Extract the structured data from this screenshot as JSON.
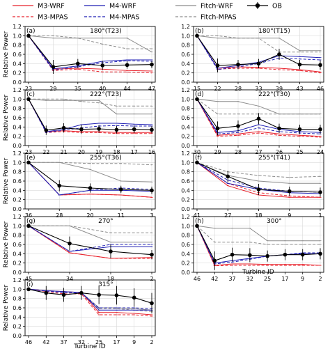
{
  "legend": {
    "items": [
      {
        "label": "M3-WRF",
        "series": "m3_wrf"
      },
      {
        "label": "M4-WRF",
        "series": "m4_wrf"
      },
      {
        "label": "Fitch-WRF",
        "series": "fitch_wrf"
      },
      {
        "label": "OB",
        "series": "ob"
      },
      {
        "label": "M3-MPAS",
        "series": "m3_mpas"
      },
      {
        "label": "M4-MPAS",
        "series": "m4_mpas"
      },
      {
        "label": "Fitch-MPAS",
        "series": "fitch_mpas"
      }
    ]
  },
  "series_styles": {
    "m3_wrf": {
      "color": "#e8202a",
      "dash": "solid"
    },
    "m3_mpas": {
      "color": "#e8202a",
      "dash": "dashed"
    },
    "m4_wrf": {
      "color": "#1f1fb4",
      "dash": "solid"
    },
    "m4_mpas": {
      "color": "#1f1fb4",
      "dash": "dashed"
    },
    "fitch_wrf": {
      "color": "#8c8c8c",
      "dash": "solid"
    },
    "fitch_mpas": {
      "color": "#8c8c8c",
      "dash": "dashed"
    },
    "ob": {
      "color": "#000000",
      "dash": "solid"
    }
  },
  "ylabel": "Relative Power",
  "xlabel": "Turbine ID",
  "yticks": [
    "0.0",
    "0.2",
    "0.4",
    "0.6",
    "0.8",
    "1.0",
    "1.2"
  ],
  "chart_data": [
    {
      "type": "line",
      "panel": "(a)",
      "title": "180°(T23)",
      "categories": [
        "23",
        "29",
        "35",
        "40",
        "44",
        "47"
      ],
      "ylim": [
        0,
        1.2
      ],
      "grid": true,
      "series": [
        {
          "name": "M3-WRF",
          "key": "m3_wrf",
          "values": [
            1.0,
            0.28,
            0.3,
            0.28,
            0.25,
            0.24
          ]
        },
        {
          "name": "M3-MPAS",
          "key": "m3_mpas",
          "values": [
            1.0,
            0.25,
            0.28,
            0.22,
            0.22,
            0.2
          ]
        },
        {
          "name": "M4-WRF",
          "key": "m4_wrf",
          "values": [
            1.0,
            0.29,
            0.35,
            0.45,
            0.48,
            0.48
          ]
        },
        {
          "name": "M4-MPAS",
          "key": "m4_mpas",
          "values": [
            1.0,
            0.26,
            0.33,
            0.42,
            0.46,
            0.45
          ]
        },
        {
          "name": "Fitch-WRF",
          "key": "fitch_wrf",
          "values": [
            1.0,
            0.95,
            0.95,
            0.95,
            0.95,
            0.65
          ]
        },
        {
          "name": "Fitch-MPAS",
          "key": "fitch_mpas",
          "values": [
            1.0,
            1.0,
            0.95,
            0.82,
            0.72,
            0.72
          ]
        },
        {
          "name": "OB",
          "key": "ob",
          "values": [
            1.0,
            0.33,
            0.4,
            0.36,
            0.37,
            0.38
          ],
          "err": [
            0,
            0.15,
            0.1,
            0.1,
            0.08,
            0.08
          ]
        }
      ]
    },
    {
      "type": "line",
      "panel": "(b)",
      "title": "180°(T15)",
      "categories": [
        "15",
        "22",
        "28",
        "33",
        "39",
        "43",
        "46"
      ],
      "ylim": [
        0,
        1.2
      ],
      "grid": true,
      "series": [
        {
          "name": "M3-WRF",
          "key": "m3_wrf",
          "values": [
            1.0,
            0.3,
            0.33,
            0.32,
            0.3,
            0.27,
            0.22
          ]
        },
        {
          "name": "M3-MPAS",
          "key": "m3_mpas",
          "values": [
            1.0,
            0.28,
            0.3,
            0.3,
            0.27,
            0.25,
            0.2
          ]
        },
        {
          "name": "M4-WRF",
          "key": "m4_wrf",
          "values": [
            1.0,
            0.3,
            0.36,
            0.43,
            0.57,
            0.55,
            0.53
          ]
        },
        {
          "name": "M4-MPAS",
          "key": "m4_mpas",
          "values": [
            1.0,
            0.27,
            0.33,
            0.4,
            0.52,
            0.5,
            0.48
          ]
        },
        {
          "name": "Fitch-WRF",
          "key": "fitch_wrf",
          "values": [
            1.0,
            0.95,
            0.95,
            0.95,
            0.95,
            0.68,
            0.68
          ]
        },
        {
          "name": "Fitch-MPAS",
          "key": "fitch_mpas",
          "values": [
            1.0,
            1.0,
            0.95,
            0.95,
            0.65,
            0.65,
            0.65
          ]
        },
        {
          "name": "OB",
          "key": "ob",
          "values": [
            1.0,
            0.36,
            0.38,
            0.4,
            0.6,
            0.38,
            0.37
          ],
          "err": [
            0,
            0.15,
            0.1,
            0.1,
            0.12,
            0.1,
            0.1
          ]
        }
      ]
    },
    {
      "type": "line",
      "panel": "(c)",
      "title": "222°(T23)",
      "categories": [
        "23",
        "22",
        "21",
        "20",
        "19",
        "18",
        "17",
        "16"
      ],
      "ylim": [
        0,
        1.2
      ],
      "grid": true,
      "series": [
        {
          "name": "M3-WRF",
          "key": "m3_wrf",
          "values": [
            1.0,
            0.3,
            0.32,
            0.3,
            0.3,
            0.28,
            0.28,
            0.28
          ]
        },
        {
          "name": "M3-MPAS",
          "key": "m3_mpas",
          "values": [
            1.0,
            0.28,
            0.3,
            0.28,
            0.28,
            0.26,
            0.26,
            0.26
          ]
        },
        {
          "name": "M4-WRF",
          "key": "m4_wrf",
          "values": [
            1.0,
            0.3,
            0.35,
            0.45,
            0.48,
            0.48,
            0.46,
            0.45
          ]
        },
        {
          "name": "M4-MPAS",
          "key": "m4_mpas",
          "values": [
            1.0,
            0.28,
            0.33,
            0.38,
            0.42,
            0.43,
            0.42,
            0.42
          ]
        },
        {
          "name": "Fitch-WRF",
          "key": "fitch_wrf",
          "values": [
            1.0,
            0.97,
            0.97,
            0.97,
            0.97,
            0.68,
            0.68,
            0.68
          ]
        },
        {
          "name": "Fitch-MPAS",
          "key": "fitch_mpas",
          "values": [
            1.0,
            1.0,
            1.0,
            0.95,
            0.92,
            0.85,
            0.85,
            0.85
          ]
        },
        {
          "name": "OB",
          "key": "ob",
          "values": [
            1.0,
            0.33,
            0.38,
            0.35,
            0.36,
            0.34,
            0.35,
            0.34
          ],
          "err": [
            0,
            0.1,
            0.1,
            0.1,
            0.08,
            0.08,
            0.08,
            0.08
          ]
        }
      ]
    },
    {
      "type": "line",
      "panel": "(d)",
      "title": "222°(T30)",
      "categories": [
        "30",
        "29",
        "28",
        "27",
        "26",
        "25",
        "24"
      ],
      "ylim": [
        0,
        1.2
      ],
      "grid": true,
      "series": [
        {
          "name": "M3-WRF",
          "key": "m3_wrf",
          "values": [
            1.0,
            0.22,
            0.25,
            0.3,
            0.25,
            0.22,
            0.2
          ]
        },
        {
          "name": "M3-MPAS",
          "key": "m3_mpas",
          "values": [
            1.0,
            0.2,
            0.22,
            0.27,
            0.22,
            0.2,
            0.18
          ]
        },
        {
          "name": "M4-WRF",
          "key": "m4_wrf",
          "values": [
            1.0,
            0.28,
            0.32,
            0.45,
            0.35,
            0.3,
            0.28
          ]
        },
        {
          "name": "M4-MPAS",
          "key": "m4_mpas",
          "values": [
            1.0,
            0.25,
            0.28,
            0.38,
            0.3,
            0.27,
            0.25
          ]
        },
        {
          "name": "Fitch-WRF",
          "key": "fitch_wrf",
          "values": [
            1.0,
            0.95,
            0.95,
            0.85,
            0.68,
            0.68,
            0.68
          ]
        },
        {
          "name": "Fitch-MPAS",
          "key": "fitch_mpas",
          "values": [
            1.0,
            0.68,
            0.68,
            0.68,
            0.68,
            0.68,
            0.68
          ]
        },
        {
          "name": "OB",
          "key": "ob",
          "values": [
            1.0,
            0.37,
            0.42,
            0.58,
            0.37,
            0.35,
            0.35
          ],
          "err": [
            0,
            0.15,
            0.12,
            0.12,
            0.1,
            0.1,
            0.1
          ]
        }
      ]
    },
    {
      "type": "line",
      "panel": "(e)",
      "title": "255°(T36)",
      "categories": [
        "36",
        "28",
        "20",
        "11",
        "3"
      ],
      "ylim": [
        0,
        1.2
      ],
      "grid": true,
      "series": [
        {
          "name": "M3-WRF",
          "key": "m3_wrf",
          "values": [
            1.0,
            0.3,
            0.32,
            0.3,
            0.25
          ]
        },
        {
          "name": "M3-MPAS",
          "key": "m3_mpas",
          "values": [
            1.0,
            0.3,
            0.32,
            0.3,
            0.25
          ]
        },
        {
          "name": "M4-WRF",
          "key": "m4_wrf",
          "values": [
            1.0,
            0.3,
            0.4,
            0.4,
            0.38
          ]
        },
        {
          "name": "M4-MPAS",
          "key": "m4_mpas",
          "values": [
            1.0,
            0.3,
            0.4,
            0.45,
            0.42
          ]
        },
        {
          "name": "Fitch-WRF",
          "key": "fitch_wrf",
          "values": [
            1.0,
            1.0,
            0.85,
            0.6,
            0.58
          ]
        },
        {
          "name": "Fitch-MPAS",
          "key": "fitch_mpas",
          "values": [
            1.0,
            1.0,
            0.98,
            0.98,
            0.95
          ]
        },
        {
          "name": "OB",
          "key": "ob",
          "values": [
            1.0,
            0.5,
            0.45,
            0.42,
            0.4
          ],
          "err": [
            0,
            0.12,
            0.1,
            0.08,
            0.08
          ]
        }
      ]
    },
    {
      "type": "line",
      "panel": "(f)",
      "title": "255°(T41)",
      "categories": [
        "41",
        "27",
        "18",
        "9",
        "1"
      ],
      "ylim": [
        0,
        1.2
      ],
      "grid": true,
      "series": [
        {
          "name": "M3-WRF",
          "key": "m3_wrf",
          "values": [
            1.0,
            0.5,
            0.3,
            0.25,
            0.25
          ]
        },
        {
          "name": "M3-MPAS",
          "key": "m3_mpas",
          "values": [
            1.0,
            0.55,
            0.35,
            0.28,
            0.25
          ]
        },
        {
          "name": "M4-WRF",
          "key": "m4_wrf",
          "values": [
            1.0,
            0.55,
            0.42,
            0.35,
            0.33
          ]
        },
        {
          "name": "M4-MPAS",
          "key": "m4_mpas",
          "values": [
            1.0,
            0.62,
            0.45,
            0.38,
            0.36
          ]
        },
        {
          "name": "Fitch-WRF",
          "key": "fitch_wrf",
          "values": [
            1.0,
            0.72,
            0.6,
            0.55,
            0.55
          ]
        },
        {
          "name": "Fitch-MPAS",
          "key": "fitch_mpas",
          "values": [
            1.0,
            0.8,
            0.72,
            0.68,
            0.7
          ]
        },
        {
          "name": "OB",
          "key": "ob",
          "values": [
            1.0,
            0.7,
            0.42,
            0.38,
            0.36
          ],
          "err": [
            0,
            0.12,
            0.12,
            0.1,
            0.1
          ]
        }
      ]
    },
    {
      "type": "line",
      "panel": "(g)",
      "title": "270°",
      "categories": [
        "45",
        "34",
        "18",
        "2"
      ],
      "ylim": [
        0,
        1.2
      ],
      "grid": true,
      "series": [
        {
          "name": "M3-WRF",
          "key": "m3_wrf",
          "values": [
            1.0,
            0.42,
            0.3,
            0.32
          ]
        },
        {
          "name": "M3-MPAS",
          "key": "m3_mpas",
          "values": [
            1.0,
            0.42,
            0.3,
            0.3
          ]
        },
        {
          "name": "M4-WRF",
          "key": "m4_wrf",
          "values": [
            1.0,
            0.45,
            0.55,
            0.55
          ]
        },
        {
          "name": "M4-MPAS",
          "key": "m4_mpas",
          "values": [
            1.0,
            0.45,
            0.6,
            0.6
          ]
        },
        {
          "name": "Fitch-WRF",
          "key": "fitch_wrf",
          "values": [
            1.0,
            1.0,
            0.65,
            0.65
          ]
        },
        {
          "name": "Fitch-MPAS",
          "key": "fitch_mpas",
          "values": [
            1.0,
            1.0,
            0.85,
            0.85
          ]
        },
        {
          "name": "OB",
          "key": "ob",
          "values": [
            1.0,
            0.62,
            0.45,
            0.38
          ],
          "err": [
            0,
            0.15,
            0.15,
            0.1
          ]
        }
      ]
    },
    {
      "type": "line",
      "panel": "(h)",
      "title": "300°",
      "categories": [
        "46",
        "42",
        "37",
        "32",
        "25",
        "17",
        "9",
        "2"
      ],
      "ylim": [
        0,
        1.2
      ],
      "grid": true,
      "series": [
        {
          "name": "M3-WRF",
          "key": "m3_wrf",
          "values": [
            1.0,
            0.15,
            0.18,
            0.18,
            0.17,
            0.17,
            0.17,
            0.15
          ]
        },
        {
          "name": "M3-MPAS",
          "key": "m3_mpas",
          "values": [
            1.0,
            0.14,
            0.15,
            0.15,
            0.15,
            0.15,
            0.15,
            0.15
          ]
        },
        {
          "name": "M4-WRF",
          "key": "m4_wrf",
          "values": [
            1.0,
            0.2,
            0.25,
            0.3,
            0.35,
            0.38,
            0.4,
            0.4
          ]
        },
        {
          "name": "M4-MPAS",
          "key": "m4_mpas",
          "values": [
            1.0,
            0.18,
            0.22,
            0.28,
            0.35,
            0.38,
            0.42,
            0.42
          ]
        },
        {
          "name": "Fitch-WRF",
          "key": "fitch_wrf",
          "values": [
            1.0,
            0.95,
            0.95,
            0.95,
            0.68,
            0.68,
            0.68,
            0.68
          ]
        },
        {
          "name": "Fitch-MPAS",
          "key": "fitch_mpas",
          "values": [
            1.0,
            0.65,
            0.65,
            0.65,
            0.6,
            0.6,
            0.6,
            0.6
          ]
        },
        {
          "name": "OB",
          "key": "ob",
          "values": [
            1.0,
            0.25,
            0.38,
            0.37,
            0.35,
            0.38,
            0.38,
            0.4
          ],
          "err": [
            0,
            0.2,
            0.15,
            0.15,
            0.12,
            0.12,
            0.12,
            0.12
          ]
        }
      ]
    },
    {
      "type": "line",
      "panel": "(i)",
      "title": "315°",
      "categories": [
        "46",
        "42",
        "37",
        "32",
        "25",
        "17",
        "9",
        "2"
      ],
      "ylim": [
        0,
        1.2
      ],
      "grid": true,
      "series": [
        {
          "name": "M3-WRF",
          "key": "m3_wrf",
          "values": [
            1.0,
            0.97,
            0.95,
            0.93,
            0.5,
            0.5,
            0.48,
            0.45
          ]
        },
        {
          "name": "M3-MPAS",
          "key": "m3_mpas",
          "values": [
            1.0,
            0.95,
            0.9,
            0.9,
            0.45,
            0.45,
            0.45,
            0.42
          ]
        },
        {
          "name": "M4-WRF",
          "key": "m4_wrf",
          "values": [
            1.0,
            0.97,
            0.95,
            0.93,
            0.55,
            0.55,
            0.55,
            0.55
          ]
        },
        {
          "name": "M4-MPAS",
          "key": "m4_mpas",
          "values": [
            1.0,
            0.96,
            0.93,
            0.92,
            0.6,
            0.6,
            0.6,
            0.58
          ]
        },
        {
          "name": "Fitch-WRF",
          "key": "fitch_wrf",
          "values": [
            1.0,
            0.97,
            0.95,
            0.93,
            0.6,
            0.6,
            0.58,
            0.55
          ]
        },
        {
          "name": "Fitch-MPAS",
          "key": "fitch_mpas",
          "values": [
            1.0,
            0.96,
            0.93,
            0.92,
            0.58,
            0.58,
            0.55,
            0.52
          ]
        },
        {
          "name": "OB",
          "key": "ob",
          "values": [
            1.0,
            0.92,
            0.88,
            0.92,
            0.88,
            0.87,
            0.82,
            0.7
          ],
          "err": [
            0,
            0.15,
            0.15,
            0.15,
            0.2,
            0.2,
            0.2,
            0.22
          ]
        }
      ]
    }
  ]
}
